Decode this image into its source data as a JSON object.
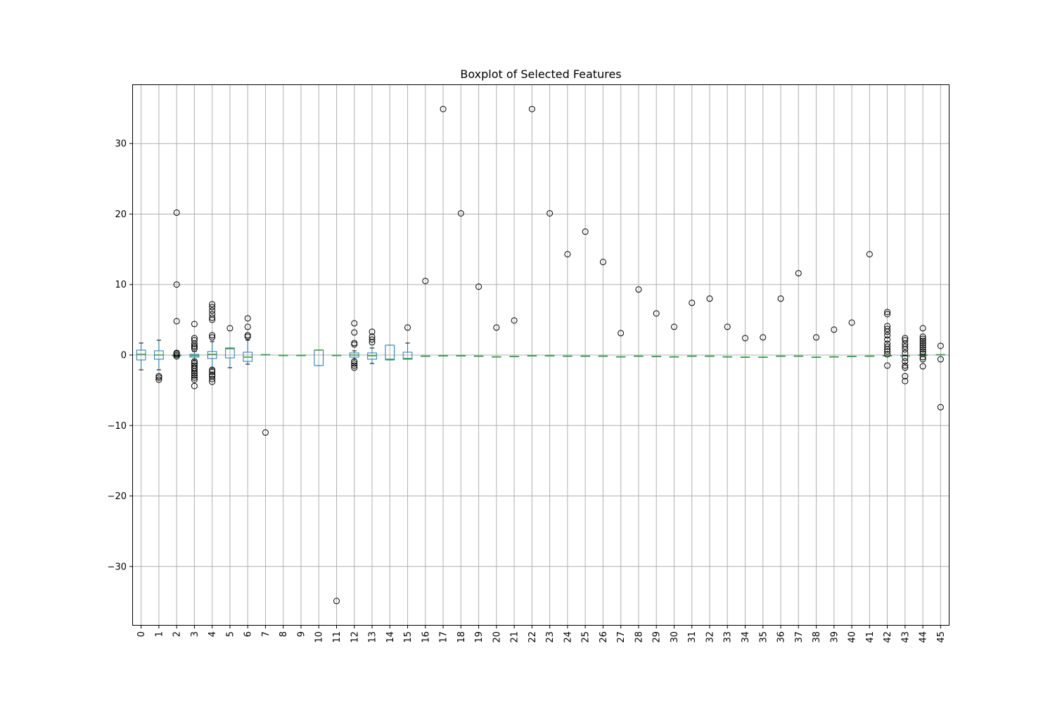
{
  "chart_data": {
    "type": "box",
    "title": "Boxplot of Selected Features",
    "xlabel": "",
    "ylabel": "",
    "ylim": [
      -38.4,
      38.4
    ],
    "yticks": [
      -30,
      -20,
      -10,
      0,
      10,
      20,
      30
    ],
    "ytick_labels": [
      "−30",
      "−20",
      "−10",
      "0",
      "10",
      "20",
      "30"
    ],
    "grid": true,
    "colors": {
      "box": "#1f77b4",
      "median": "#2ca02c",
      "whisker": "#000000",
      "flier": "#000000",
      "grid": "#b0b0b0"
    },
    "categories": [
      "0",
      "1",
      "2",
      "3",
      "4",
      "5",
      "6",
      "7",
      "8",
      "9",
      "10",
      "11",
      "12",
      "13",
      "14",
      "15",
      "16",
      "17",
      "18",
      "19",
      "20",
      "21",
      "22",
      "23",
      "24",
      "25",
      "26",
      "27",
      "28",
      "29",
      "30",
      "31",
      "32",
      "33",
      "34",
      "35",
      "36",
      "37",
      "38",
      "39",
      "40",
      "41",
      "42",
      "43",
      "44",
      "45"
    ],
    "boxes": [
      {
        "min": -2.1,
        "q1": -0.7,
        "median": 0.1,
        "q3": 0.7,
        "max": 1.7,
        "fliers": []
      },
      {
        "min": -2.1,
        "q1": -0.6,
        "median": 0.0,
        "q3": 0.6,
        "max": 2.1,
        "fliers": [
          -3.0,
          -3.2,
          -3.5
        ]
      },
      {
        "min": -0.2,
        "q1": -0.1,
        "median": -0.05,
        "q3": 0.0,
        "max": 0.0,
        "fliers": [
          20.2,
          10.0,
          4.8,
          0.3,
          0.2,
          0.0,
          -0.2
        ]
      },
      {
        "min": -0.7,
        "q1": -0.3,
        "median": -0.1,
        "q3": 0.1,
        "max": 0.5,
        "fliers": [
          4.4,
          2.4,
          2.1,
          1.6,
          1.3,
          1.1,
          0.9,
          -0.9,
          -1.2,
          -1.5,
          -1.8,
          -2.0,
          -2.3,
          -2.6,
          -2.9,
          -3.2,
          -3.5,
          -4.4
        ]
      },
      {
        "min": -1.9,
        "q1": -0.5,
        "median": 0.1,
        "q3": 0.5,
        "max": 1.9,
        "fliers": [
          7.2,
          6.8,
          6.3,
          5.8,
          5.3,
          5.0,
          2.8,
          2.5,
          -2.1,
          -2.4,
          -2.8,
          -3.0,
          -3.4,
          -3.8
        ]
      },
      {
        "min": -1.8,
        "q1": -0.4,
        "median": 0.9,
        "q3": 1.0,
        "max": 1.0,
        "fliers": [
          3.8
        ]
      },
      {
        "min": -1.3,
        "q1": -0.9,
        "median": -0.3,
        "q3": 0.4,
        "max": 2.1,
        "fliers": [
          5.2,
          4.0,
          2.8,
          2.6
        ]
      },
      {
        "min": 0.05,
        "q1": 0.05,
        "median": 0.05,
        "q3": 0.05,
        "max": 0.05,
        "fliers": [
          -11.0
        ]
      },
      {
        "min": -0.05,
        "q1": -0.05,
        "median": -0.05,
        "q3": -0.05,
        "max": -0.05,
        "fliers": []
      },
      {
        "min": -0.05,
        "q1": -0.05,
        "median": -0.05,
        "q3": -0.05,
        "max": -0.05,
        "fliers": []
      },
      {
        "min": -1.5,
        "q1": -1.5,
        "median": 0.7,
        "q3": 0.7,
        "max": 0.7,
        "fliers": []
      },
      {
        "min": -0.05,
        "q1": -0.05,
        "median": -0.05,
        "q3": -0.05,
        "max": -0.05,
        "fliers": [
          -34.9
        ]
      },
      {
        "min": -0.6,
        "q1": -0.3,
        "median": 0.0,
        "q3": 0.3,
        "max": 0.6,
        "fliers": [
          4.5,
          3.2,
          1.7,
          1.5,
          -0.9,
          -1.2,
          -1.5,
          -1.8
        ]
      },
      {
        "min": -1.2,
        "q1": -0.6,
        "median": -0.1,
        "q3": 0.3,
        "max": 1.0,
        "fliers": [
          3.3,
          2.6,
          2.2,
          1.8
        ]
      },
      {
        "min": -0.7,
        "q1": -0.7,
        "median": -0.6,
        "q3": 1.4,
        "max": 1.4,
        "fliers": []
      },
      {
        "min": -0.6,
        "q1": -0.6,
        "median": -0.5,
        "q3": 0.4,
        "max": 1.7,
        "fliers": [
          3.9
        ]
      },
      {
        "min": -0.15,
        "q1": -0.15,
        "median": -0.15,
        "q3": -0.15,
        "max": -0.15,
        "fliers": [
          10.5
        ]
      },
      {
        "min": -0.1,
        "q1": -0.1,
        "median": -0.1,
        "q3": -0.1,
        "max": -0.1,
        "fliers": [
          34.9
        ]
      },
      {
        "min": -0.1,
        "q1": -0.1,
        "median": -0.1,
        "q3": -0.1,
        "max": -0.1,
        "fliers": [
          20.1
        ]
      },
      {
        "min": -0.15,
        "q1": -0.15,
        "median": -0.15,
        "q3": -0.15,
        "max": -0.15,
        "fliers": [
          9.7
        ]
      },
      {
        "min": -0.25,
        "q1": -0.25,
        "median": -0.25,
        "q3": -0.25,
        "max": -0.25,
        "fliers": [
          3.9
        ]
      },
      {
        "min": -0.2,
        "q1": -0.2,
        "median": -0.2,
        "q3": -0.2,
        "max": -0.2,
        "fliers": [
          4.9
        ]
      },
      {
        "min": -0.1,
        "q1": -0.1,
        "median": -0.1,
        "q3": -0.1,
        "max": -0.1,
        "fliers": [
          34.9
        ]
      },
      {
        "min": -0.1,
        "q1": -0.1,
        "median": -0.1,
        "q3": -0.1,
        "max": -0.1,
        "fliers": [
          20.1
        ]
      },
      {
        "min": -0.15,
        "q1": -0.15,
        "median": -0.15,
        "q3": -0.15,
        "max": -0.15,
        "fliers": [
          14.3
        ]
      },
      {
        "min": -0.15,
        "q1": -0.15,
        "median": -0.15,
        "q3": -0.15,
        "max": -0.15,
        "fliers": [
          17.5
        ]
      },
      {
        "min": -0.15,
        "q1": -0.15,
        "median": -0.15,
        "q3": -0.15,
        "max": -0.15,
        "fliers": [
          13.2
        ]
      },
      {
        "min": -0.25,
        "q1": -0.25,
        "median": -0.25,
        "q3": -0.25,
        "max": -0.25,
        "fliers": [
          3.1
        ]
      },
      {
        "min": -0.15,
        "q1": -0.15,
        "median": -0.15,
        "q3": -0.15,
        "max": -0.15,
        "fliers": [
          9.3
        ]
      },
      {
        "min": -0.2,
        "q1": -0.2,
        "median": -0.2,
        "q3": -0.2,
        "max": -0.2,
        "fliers": [
          5.9
        ]
      },
      {
        "min": -0.25,
        "q1": -0.25,
        "median": -0.25,
        "q3": -0.25,
        "max": -0.25,
        "fliers": [
          4.0
        ]
      },
      {
        "min": -0.15,
        "q1": -0.15,
        "median": -0.15,
        "q3": -0.15,
        "max": -0.15,
        "fliers": [
          7.4
        ]
      },
      {
        "min": -0.15,
        "q1": -0.15,
        "median": -0.15,
        "q3": -0.15,
        "max": -0.15,
        "fliers": [
          8.0
        ]
      },
      {
        "min": -0.25,
        "q1": -0.25,
        "median": -0.25,
        "q3": -0.25,
        "max": -0.25,
        "fliers": [
          4.0
        ]
      },
      {
        "min": -0.3,
        "q1": -0.3,
        "median": -0.3,
        "q3": -0.3,
        "max": -0.3,
        "fliers": [
          2.4
        ]
      },
      {
        "min": -0.3,
        "q1": -0.3,
        "median": -0.3,
        "q3": -0.3,
        "max": -0.3,
        "fliers": [
          2.5
        ]
      },
      {
        "min": -0.15,
        "q1": -0.15,
        "median": -0.15,
        "q3": -0.15,
        "max": -0.15,
        "fliers": [
          8.0
        ]
      },
      {
        "min": -0.15,
        "q1": -0.15,
        "median": -0.15,
        "q3": -0.15,
        "max": -0.15,
        "fliers": [
          11.6
        ]
      },
      {
        "min": -0.3,
        "q1": -0.3,
        "median": -0.3,
        "q3": -0.3,
        "max": -0.3,
        "fliers": [
          2.5
        ]
      },
      {
        "min": -0.25,
        "q1": -0.25,
        "median": -0.25,
        "q3": -0.25,
        "max": -0.25,
        "fliers": [
          3.6
        ]
      },
      {
        "min": -0.2,
        "q1": -0.2,
        "median": -0.2,
        "q3": -0.2,
        "max": -0.2,
        "fliers": [
          4.6
        ]
      },
      {
        "min": -0.15,
        "q1": -0.15,
        "median": -0.15,
        "q3": -0.15,
        "max": -0.15,
        "fliers": [
          14.3
        ]
      },
      {
        "min": -0.1,
        "q1": -0.1,
        "median": -0.1,
        "q3": -0.1,
        "max": -0.1,
        "fliers": [
          6.1,
          5.8,
          4.1,
          3.7,
          3.3,
          2.8,
          2.2,
          1.6,
          1.2,
          0.8,
          0.5,
          0.1,
          -1.5
        ]
      },
      {
        "min": -0.1,
        "q1": -0.1,
        "median": -0.1,
        "q3": -0.1,
        "max": -0.1,
        "fliers": [
          2.4,
          2.1,
          1.6,
          1.2,
          0.8,
          0.3,
          -0.4,
          -0.9,
          -1.5,
          -1.8,
          -3.0,
          -3.7
        ]
      },
      {
        "min": 0.0,
        "q1": 0.0,
        "median": 0.0,
        "q3": 0.0,
        "max": 0.0,
        "fliers": [
          3.8,
          2.6,
          2.3,
          2.0,
          1.7,
          1.4,
          1.1,
          0.8,
          0.5,
          0.2,
          -0.3,
          -0.6,
          -1.6
        ]
      },
      {
        "min": 0.05,
        "q1": 0.05,
        "median": 0.05,
        "q3": 0.05,
        "max": 0.05,
        "fliers": [
          1.3,
          -0.6,
          -7.4
        ]
      }
    ]
  }
}
